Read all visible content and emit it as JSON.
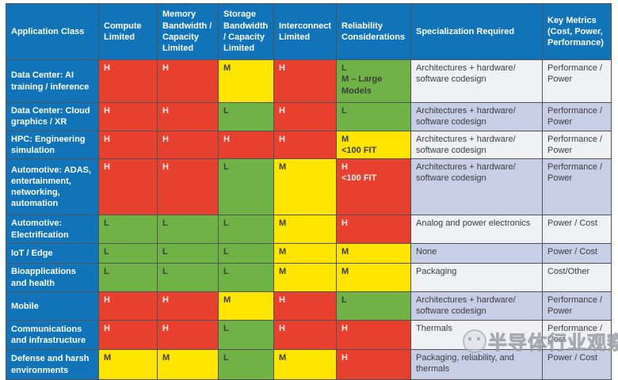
{
  "colors": {
    "blue": "#1173b8",
    "light": "#f0f1f5",
    "lavender": "#c7cfe7",
    "legend_H_red": "#e8402e",
    "legend_M_yellow": "#fee500",
    "legend_L_green": "#6fb347"
  },
  "table": {
    "columns": [
      {
        "key": "application-class",
        "label": "Application Class"
      },
      {
        "key": "compute-limited",
        "label": "Compute Limited"
      },
      {
        "key": "memory-bandwidth",
        "label": "Memory Bandwidth / Capacity Limited"
      },
      {
        "key": "storage-bandwidth",
        "label": "Storage Bandwidth / Capacity Limited"
      },
      {
        "key": "interconnect-limited",
        "label": "Interconnect Limited"
      },
      {
        "key": "reliability",
        "label": "Reliability Considerations"
      },
      {
        "key": "specialization",
        "label": "Specialization Required"
      },
      {
        "key": "key-metrics",
        "label": "Key Metrics (Cost, Power, Performance)"
      }
    ],
    "legend_colors": {
      "H": "#e8402e",
      "M": "#fee500",
      "L": "#6fb347"
    },
    "rows": [
      {
        "label": "Data Center: AI training / inference",
        "compute": {
          "text": "H",
          "level": "H"
        },
        "memory": {
          "text": "H",
          "level": "H"
        },
        "storage": {
          "text": "M",
          "level": "M"
        },
        "interconnect": {
          "text": "H",
          "level": "H"
        },
        "reliability": {
          "text": "L\nM – Large Models",
          "level": "L"
        },
        "specialization": "Architectures + hardware/ software codesign",
        "key_metrics": "Performance / Power"
      },
      {
        "label": "Data Center: Cloud graphics / XR",
        "compute": {
          "text": "H",
          "level": "H"
        },
        "memory": {
          "text": "H",
          "level": "H"
        },
        "storage": {
          "text": "L",
          "level": "L"
        },
        "interconnect": {
          "text": "H",
          "level": "H"
        },
        "reliability": {
          "text": "L",
          "level": "L"
        },
        "specialization": "Architectures + hardware/ software codesign",
        "key_metrics": "Performance / Power"
      },
      {
        "label": "HPC: Engineering simulation",
        "compute": {
          "text": "H",
          "level": "H"
        },
        "memory": {
          "text": "H",
          "level": "H"
        },
        "storage": {
          "text": "H",
          "level": "H"
        },
        "interconnect": {
          "text": "H",
          "level": "H"
        },
        "reliability": {
          "text": "M\n<100 FIT",
          "level": "M"
        },
        "specialization": "Architectures + hardware/ software codesign",
        "key_metrics": "Performance / Power"
      },
      {
        "label": "Automotive: ADAS, entertainment, networking, automation",
        "compute": {
          "text": "H",
          "level": "H"
        },
        "memory": {
          "text": "H",
          "level": "H"
        },
        "storage": {
          "text": "L",
          "level": "L"
        },
        "interconnect": {
          "text": "M",
          "level": "M"
        },
        "reliability": {
          "text": "H\n<100 FIT",
          "level": "H"
        },
        "specialization": "Architectures + hardware/ software codesign",
        "key_metrics": "Performance / Power"
      },
      {
        "label": "Automotive: Electrification",
        "compute": {
          "text": "L",
          "level": "L"
        },
        "memory": {
          "text": "L",
          "level": "L"
        },
        "storage": {
          "text": "L",
          "level": "L"
        },
        "interconnect": {
          "text": "M",
          "level": "M"
        },
        "reliability": {
          "text": "H",
          "level": "H"
        },
        "specialization": "Analog and power electronics",
        "key_metrics": "Power / Cost"
      },
      {
        "label": "IoT / Edge",
        "compute": {
          "text": "L",
          "level": "L"
        },
        "memory": {
          "text": "L",
          "level": "L"
        },
        "storage": {
          "text": "L",
          "level": "L"
        },
        "interconnect": {
          "text": "M",
          "level": "M"
        },
        "reliability": {
          "text": "M",
          "level": "M"
        },
        "specialization": "None",
        "key_metrics": "Power / Cost"
      },
      {
        "label": "Bioapplications and health",
        "compute": {
          "text": "L",
          "level": "L"
        },
        "memory": {
          "text": "L",
          "level": "L"
        },
        "storage": {
          "text": "L",
          "level": "L"
        },
        "interconnect": {
          "text": "M",
          "level": "M"
        },
        "reliability": {
          "text": "M",
          "level": "M"
        },
        "specialization": "Packaging",
        "key_metrics": "Cost/Other"
      },
      {
        "label": "Mobile",
        "compute": {
          "text": "H",
          "level": "H"
        },
        "memory": {
          "text": "H",
          "level": "H"
        },
        "storage": {
          "text": "M",
          "level": "M"
        },
        "interconnect": {
          "text": "H",
          "level": "H"
        },
        "reliability": {
          "text": "L",
          "level": "L"
        },
        "specialization": "Architectures + hardware/ software codesign",
        "key_metrics": "Performance / Power"
      },
      {
        "label": "Communications and infrastructure",
        "compute": {
          "text": "H",
          "level": "H"
        },
        "memory": {
          "text": "H",
          "level": "H"
        },
        "storage": {
          "text": "L",
          "level": "L"
        },
        "interconnect": {
          "text": "H",
          "level": "H"
        },
        "reliability": {
          "text": "H",
          "level": "H"
        },
        "specialization": "Thermals",
        "key_metrics": "Performance / Cost"
      },
      {
        "label": "Defense and harsh environments",
        "compute": {
          "text": "M",
          "level": "M"
        },
        "memory": {
          "text": "M",
          "level": "M"
        },
        "storage": {
          "text": "L",
          "level": "L"
        },
        "interconnect": {
          "text": "M",
          "level": "M"
        },
        "reliability": {
          "text": "H",
          "level": "H"
        },
        "specialization": "Packaging, reliability, and thermals",
        "key_metrics": "Power / Cost"
      }
    ]
  },
  "watermark": {
    "text": "半导体行业观察"
  }
}
